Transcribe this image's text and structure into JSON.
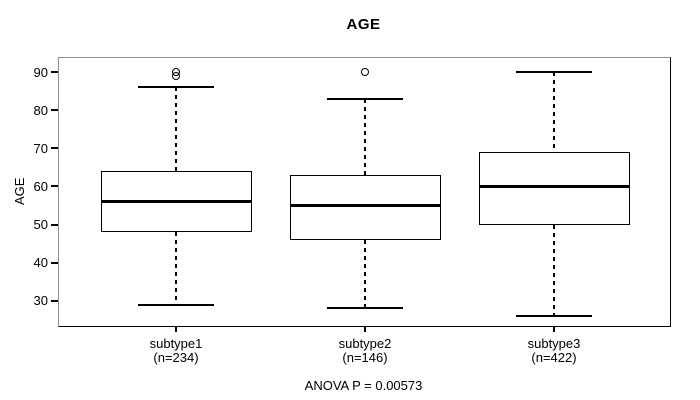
{
  "figure": {
    "title": "AGE",
    "y_axis_title": "AGE",
    "annotation": "ANOVA P = 0.00573"
  },
  "chart_data": {
    "type": "boxplot",
    "title": "AGE",
    "xlabel": "",
    "ylabel": "AGE",
    "ylim": [
      23.4,
      93.7
    ],
    "y_ticks": [
      30,
      40,
      50,
      60,
      70,
      80,
      90
    ],
    "grid": false,
    "legend": "none",
    "annotation": "ANOVA P = 0.00573",
    "categories": [
      "subtype1",
      "subtype2",
      "subtype3"
    ],
    "groups": [
      {
        "label": "subtype1",
        "count_label": "(n=234)",
        "n": 234,
        "whisker_low": 29,
        "q1": 48,
        "median": 56,
        "q3": 64,
        "whisker_high": 86,
        "outliers": [
          89,
          90
        ]
      },
      {
        "label": "subtype2",
        "count_label": "(n=146)",
        "n": 146,
        "whisker_low": 28,
        "q1": 46,
        "median": 55,
        "q3": 63,
        "whisker_high": 83,
        "outliers": [
          90
        ]
      },
      {
        "label": "subtype3",
        "count_label": "(n=422)",
        "n": 422,
        "whisker_low": 26,
        "q1": 50,
        "median": 60,
        "q3": 69,
        "whisker_high": 90,
        "outliers": []
      }
    ]
  },
  "colors": {
    "stroke": "#000000",
    "background": "#ffffff",
    "frame_shadow": "#8f8f8f"
  }
}
